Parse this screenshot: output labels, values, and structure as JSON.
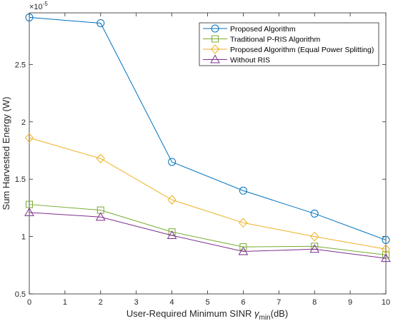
{
  "chart_data": {
    "type": "line",
    "title": "",
    "xlabel_main": "User-Required Minimum SINR ",
    "xlabel_symbol": "γ",
    "xlabel_sub": "min",
    "xlabel_unit": "(dB)",
    "ylabel": "Sum Harvested Energy (W)",
    "y_exponent_base": "×10",
    "y_exponent_power": "-5",
    "xlim": [
      0,
      10
    ],
    "ylim": [
      0.5,
      2.95
    ],
    "x_ticks": [
      "0",
      "1",
      "2",
      "3",
      "4",
      "5",
      "6",
      "7",
      "8",
      "9",
      "10"
    ],
    "y_ticks": [
      "0.5",
      "1",
      "1.5",
      "2",
      "2.5"
    ],
    "x": [
      0,
      2,
      4,
      6,
      8,
      10
    ],
    "legend_position": "top-right",
    "grid": false,
    "series": [
      {
        "name": "Proposed Algorithm",
        "color": "#0072BD",
        "marker": "circle",
        "values": [
          2.91,
          2.86,
          1.65,
          1.4,
          1.2,
          0.97
        ]
      },
      {
        "name": "Traditional P-RIS Algorithm",
        "color": "#77AC30",
        "marker": "square",
        "values": [
          1.28,
          1.23,
          1.04,
          0.91,
          0.915,
          0.84
        ]
      },
      {
        "name": "Proposed Algorithm (Equal Power Splitting)",
        "color": "#EDB120",
        "marker": "diamond",
        "values": [
          1.86,
          1.68,
          1.32,
          1.12,
          1.0,
          0.89
        ]
      },
      {
        "name": "Without RIS",
        "color": "#7E2F8E",
        "marker": "triangle",
        "values": [
          1.21,
          1.17,
          1.01,
          0.87,
          0.89,
          0.81
        ]
      }
    ]
  }
}
